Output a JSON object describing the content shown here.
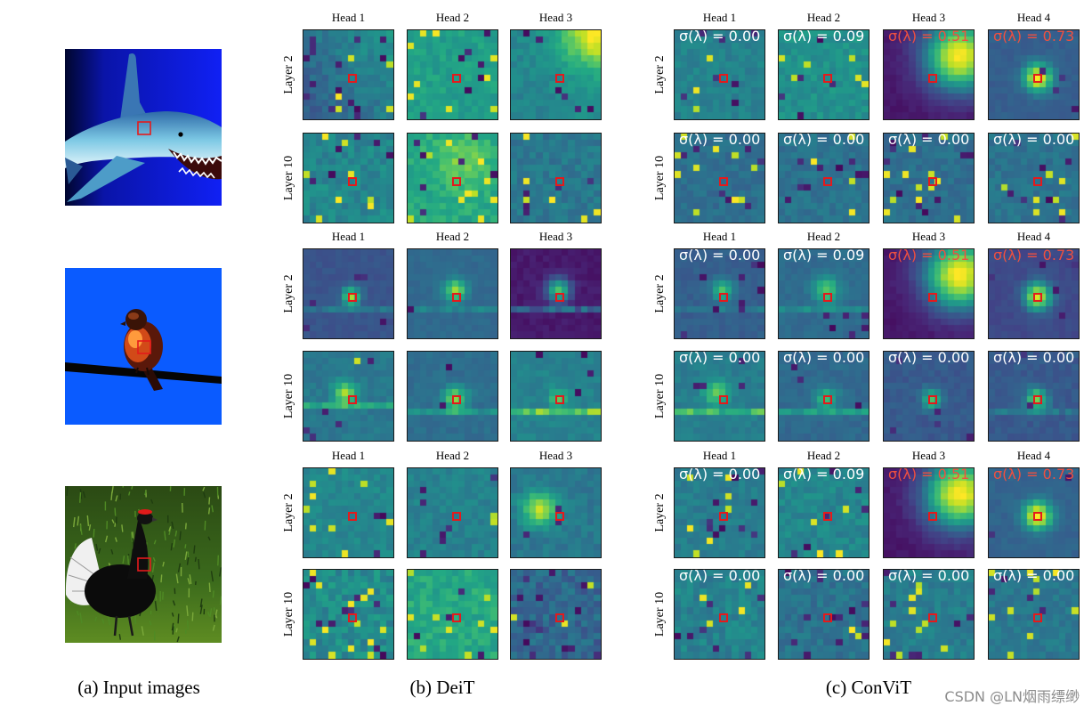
{
  "captions": {
    "input": "(a) Input images",
    "deit": "(b) DeiT",
    "convit": "(c) ConViT"
  },
  "deit": {
    "heads": [
      "Head 1",
      "Head 2",
      "Head 3"
    ],
    "layers": [
      "Layer 2",
      "Layer 10"
    ]
  },
  "convit": {
    "heads": [
      "Head 1",
      "Head 2",
      "Head 3",
      "Head 4"
    ],
    "layers": [
      "Layer 2",
      "Layer 10"
    ],
    "sigma_labels": [
      [
        "σ(λ) = 0.00",
        "σ(λ) = 0.09",
        "σ(λ) = 0.51",
        "σ(λ) = 0.73"
      ],
      [
        "σ(λ) = 0.00",
        "σ(λ) = 0.00",
        "σ(λ) = 0.00",
        "σ(λ) = 0.00"
      ]
    ]
  },
  "watermark": "CSDN @LN烟雨缥缈",
  "colors": {
    "query_marker": "#e41a1c",
    "sigma_text": "#ffffff",
    "sigma_text_highlight": "#ef5040"
  }
}
